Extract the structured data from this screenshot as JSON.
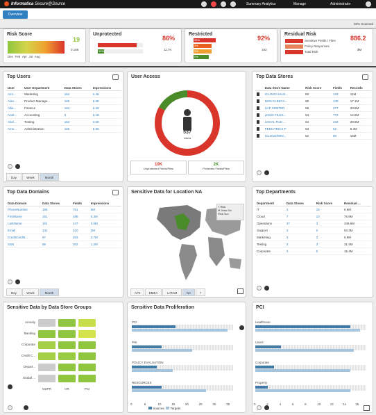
{
  "header": {
    "brand": "Informatica",
    "product": "Secure@Source",
    "menu_summary": "Summary Analytics",
    "menu_manage": "Manage",
    "menu_admin": "Administrator"
  },
  "tabs": {
    "overview": "Overview"
  },
  "scanned": "98% Scanned",
  "kpis": {
    "risk_score": {
      "title": "Risk Score",
      "value": "19",
      "sub": "0.186",
      "months": [
        "Dec",
        "Feb",
        "Apr",
        "Jul",
        "Aug"
      ]
    },
    "unprotected": {
      "title": "Unprotected",
      "pct": "86%",
      "v1": "11.7K",
      "v2": "14%",
      "pct_fill": 0.86
    },
    "restricted": {
      "title": "Restricted",
      "pct": "92%",
      "v1": "183",
      "rows": [
        "93%",
        "3%",
        "3%",
        "2%"
      ],
      "pct_fill": 0.92
    },
    "residual": {
      "title": "Residual Risk",
      "value": "886.2",
      "v1": "$M",
      "rows": [
        "Sensitive Fields / Files",
        "Policy Responses",
        "Total Risk"
      ]
    }
  },
  "top_users": {
    "title": "Top Users",
    "cols": [
      "User",
      "User Department",
      "Data Stores",
      "Impressions"
    ],
    "rows": [
      [
        "Ami...",
        "Marketing",
        "164",
        "6.48"
      ],
      [
        "Alan...",
        "Product Manage...",
        "165",
        "6.38"
      ],
      [
        "Allie...",
        "Finance",
        "164",
        "6.28"
      ],
      [
        "Andr...",
        "Accounting",
        "5",
        "6.18"
      ],
      [
        "Abel...",
        "Testing",
        "164",
        "6.08"
      ],
      [
        "Ame...",
        "Administration",
        "165",
        "5.98"
      ]
    ],
    "periods": [
      "Day",
      "Week",
      "Month"
    ]
  },
  "user_access": {
    "title": "User Access",
    "count": "537",
    "count_label": "Users",
    "unprotected_value": "10K",
    "unprotected_label": "Unprotected Fields/Files",
    "protected_value": "2K",
    "protected_label": "Protected Fields/Files",
    "unprotected_share": 0.83
  },
  "top_data_stores": {
    "title": "Top Data Stores",
    "cols": [
      "Data Store Name",
      "Risk Score",
      "Fields",
      "Records"
    ],
    "rows": [
      [
        "ICLOUD SALE...",
        "80",
        "133",
        "11M"
      ],
      [
        "NON CLINICA...",
        "80",
        "130",
        "17.1M"
      ],
      [
        "SAP CENTER",
        "58",
        "277",
        "33.8M"
      ],
      [
        "LINUX FILES...",
        "54",
        "772",
        "14.8M"
      ],
      [
        "LOCAL FILE ...",
        "54",
        "232",
        "29.8M"
      ],
      [
        "PEDIATRICS P",
        "53",
        "52",
        "8.4M"
      ],
      [
        "ICLOUD/WIN...",
        "52",
        "90",
        "16M"
      ]
    ]
  },
  "top_data_domains": {
    "title": "Top Data Domains",
    "cols": [
      "Data Domain",
      "Data Stores",
      "Fields",
      "Impressions"
    ],
    "rows": [
      [
        "PhoneNumber",
        "156",
        "761",
        "5M"
      ],
      [
        "FirstName",
        "161",
        "488",
        "5.3M"
      ],
      [
        "LastName",
        "161",
        "447",
        "3.6M"
      ],
      [
        "Email",
        "141",
        "310",
        "2M"
      ],
      [
        "CreditCardN...",
        "87",
        "203",
        "2.7M"
      ],
      [
        "SSN",
        "89",
        "302",
        "1.2M"
      ]
    ],
    "periods": [
      "Day",
      "Week",
      "Month"
    ]
  },
  "sensitive_location": {
    "title": "Sensitive Data for Location NA",
    "tooltip_title": "T Risk",
    "tooltip_line1": "M Data Sto",
    "tooltip_line2": "Risk Sco",
    "regions": [
      "APJ",
      "EMEA",
      "LATAM",
      "NA",
      "?"
    ]
  },
  "top_departments": {
    "title": "Top Departments",
    "cols": [
      "Department",
      "Data Stores",
      "Risk Score",
      "Residual ..."
    ],
    "rows": [
      [
        "IT",
        "3",
        "15",
        "8.9M"
      ],
      [
        "Cloud",
        "7",
        "10",
        "76.9M"
      ],
      [
        "Operations",
        "47",
        "3",
        "346.6M"
      ],
      [
        "Support",
        "3",
        "0",
        "94.3M"
      ],
      [
        "Marketing",
        "3",
        "3",
        "6.9M"
      ],
      [
        "Testing",
        "3",
        "3",
        "31.4M"
      ],
      [
        "Corporate",
        "3",
        "0",
        "15.4M"
      ]
    ]
  },
  "store_groups": {
    "title": "Sensitive Data by Data Store Groups",
    "rows": [
      "Annuity",
      "Banking",
      "Corporate",
      "Credit C...",
      "Depart...",
      "Global ..."
    ],
    "cols": [
      "GDPR",
      "HR",
      "PCI"
    ],
    "cells": [
      [
        "#cccccc",
        "#8fc53f",
        "#c7dd4c"
      ],
      [
        "#8fc53f",
        "#8fc53f",
        "#d4e24d"
      ],
      [
        "#a5cf46",
        "#8fc53f",
        "#8fc53f"
      ],
      [
        "#a5cf46",
        "#9acb44",
        "#8fc53f"
      ],
      [
        "#cccccc",
        "#8fc53f",
        "#8fc53f"
      ],
      [
        "#cccccc",
        "#8fc53f",
        "#8fc53f"
      ]
    ]
  },
  "proliferation": {
    "title": "Sensitive Data Proliferation",
    "categories": [
      "PCI",
      "PHI",
      "POLICY EVALUATION",
      "RESOURCES"
    ],
    "sources": [
      16,
      11,
      9,
      11
    ],
    "targets": [
      35,
      22,
      15,
      27
    ],
    "x_ticks": [
      "0",
      "5",
      "10",
      "15",
      "20",
      "25",
      "30",
      "35"
    ],
    "x_max": 37,
    "legend": [
      "Sources",
      "Targets"
    ],
    "color_sources": "#3e7ba6",
    "color_targets": "#a6c5dd"
  },
  "pci": {
    "title": "PCI",
    "categories": [
      "Healthcare",
      "Users",
      "Corporate",
      "Property"
    ],
    "sources": [
      15,
      4,
      3,
      2
    ],
    "targets": [
      16.5,
      15.5,
      15,
      15
    ],
    "x_ticks": [
      "0",
      "2",
      "4",
      "6",
      "8",
      "10",
      "12",
      "14",
      "16"
    ],
    "x_max": 17.5
  }
}
